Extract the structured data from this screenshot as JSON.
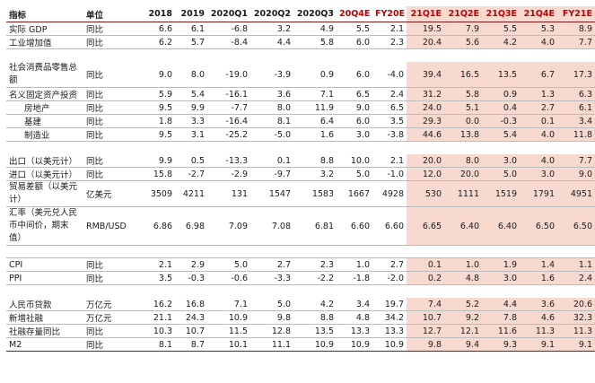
{
  "headers": [
    "指标",
    "单位",
    "2018",
    "2019",
    "2020Q1",
    "2020Q2",
    "2020Q3",
    "20Q4E",
    "FY20E",
    "21Q1E",
    "21Q2E",
    "21Q3E",
    "21Q4E",
    "FY21E"
  ],
  "rows": [
    {
      "kind": "row",
      "label": "实际 GDP",
      "unit": "同比",
      "values": [
        "6.6",
        "6.1",
        "-6.8",
        "3.2",
        "4.9",
        "5.5",
        "2.1",
        "19.5",
        "7.9",
        "5.5",
        "5.3",
        "8.9"
      ]
    },
    {
      "kind": "row",
      "label": "工业增加值",
      "unit": "同比",
      "values": [
        "6.2",
        "5.7",
        "-8.4",
        "4.4",
        "5.8",
        "6.0",
        "2.3",
        "20.4",
        "5.6",
        "4.2",
        "4.0",
        "7.7"
      ]
    },
    {
      "kind": "gap"
    },
    {
      "kind": "row",
      "tall": true,
      "label": "社会消费品零售总额",
      "unit": "同比",
      "values": [
        "9.0",
        "8.0",
        "-19.0",
        "-3.9",
        "0.9",
        "6.0",
        "-4.0",
        "39.4",
        "16.5",
        "13.5",
        "6.7",
        "17.3"
      ]
    },
    {
      "kind": "row",
      "label": "名义固定资产投资",
      "unit": "同比",
      "values": [
        "5.9",
        "5.4",
        "-16.1",
        "3.6",
        "7.1",
        "6.5",
        "2.4",
        "31.2",
        "5.8",
        "0.9",
        "1.3",
        "6.3"
      ]
    },
    {
      "kind": "row",
      "indent": true,
      "label": "房地产",
      "unit": "同比",
      "values": [
        "9.5",
        "9.9",
        "-7.7",
        "8.0",
        "11.9",
        "9.0",
        "6.5",
        "24.0",
        "5.1",
        "0.4",
        "2.7",
        "6.1"
      ]
    },
    {
      "kind": "row",
      "indent": true,
      "label": "基建",
      "unit": "同比",
      "values": [
        "1.8",
        "3.3",
        "-16.4",
        "8.1",
        "6.4",
        "6.0",
        "3.5",
        "29.3",
        "0.0",
        "-0.3",
        "0.1",
        "3.4"
      ]
    },
    {
      "kind": "row",
      "indent": true,
      "label": "制造业",
      "unit": "同比",
      "values": [
        "9.5",
        "3.1",
        "-25.2",
        "-5.0",
        "1.6",
        "3.0",
        "-3.8",
        "44.6",
        "13.8",
        "5.4",
        "4.0",
        "11.8"
      ]
    },
    {
      "kind": "gap"
    },
    {
      "kind": "row",
      "label": "出口（以美元计）",
      "unit": "同比",
      "values": [
        "9.9",
        "0.5",
        "-13.3",
        "0.1",
        "8.8",
        "10.0",
        "2.1",
        "20.0",
        "8.0",
        "3.0",
        "4.0",
        "7.7"
      ]
    },
    {
      "kind": "row",
      "label": "进口（以美元计）",
      "unit": "同比",
      "values": [
        "15.8",
        "-2.7",
        "-2.9",
        "-9.7",
        "3.2",
        "5.0",
        "-1.0",
        "12.0",
        "20.0",
        "5.0",
        "3.0",
        "9.0"
      ]
    },
    {
      "kind": "row",
      "tall": true,
      "label": "贸易差额（以美元计）",
      "unit": "亿美元",
      "values": [
        "3509",
        "4211",
        "131",
        "1547",
        "1583",
        "1667",
        "4928",
        "530",
        "1111",
        "1519",
        "1791",
        "4951"
      ]
    },
    {
      "kind": "row",
      "tall": true,
      "label": "汇率（美元兑人民币中间价，期末值）",
      "unit": "RMB/USD",
      "values": [
        "6.86",
        "6.98",
        "7.09",
        "7.08",
        "6.81",
        "6.60",
        "6.60",
        "6.65",
        "6.40",
        "6.40",
        "6.50",
        "6.50"
      ]
    },
    {
      "kind": "gapb"
    },
    {
      "kind": "row",
      "label": "CPI",
      "unit": "同比",
      "values": [
        "2.1",
        "2.9",
        "5.0",
        "2.7",
        "2.3",
        "1.0",
        "2.7",
        "0.1",
        "1.0",
        "1.9",
        "1.4",
        "1.1"
      ]
    },
    {
      "kind": "row",
      "label": "PPI",
      "unit": "同比",
      "values": [
        "3.5",
        "-0.3",
        "-0.6",
        "-3.3",
        "-2.2",
        "-1.8",
        "-2.0",
        "0.2",
        "4.8",
        "3.0",
        "1.6",
        "2.4"
      ]
    },
    {
      "kind": "gap"
    },
    {
      "kind": "row",
      "label": "人民币贷款",
      "unit": "万亿元",
      "values": [
        "16.2",
        "16.8",
        "7.1",
        "5.0",
        "4.2",
        "3.4",
        "19.7",
        "7.4",
        "5.2",
        "4.4",
        "3.6",
        "20.6"
      ]
    },
    {
      "kind": "row",
      "label": "新增社融",
      "unit": "万亿元",
      "values": [
        "21.1",
        "24.3",
        "10.9",
        "9.8",
        "8.8",
        "4.8",
        "34.2",
        "10.7",
        "9.2",
        "7.8",
        "4.6",
        "32.3"
      ]
    },
    {
      "kind": "row",
      "label": "社融存量同比",
      "unit": "同比",
      "values": [
        "10.3",
        "10.7",
        "11.5",
        "12.8",
        "13.5",
        "13.3",
        "13.3",
        "12.7",
        "12.1",
        "11.6",
        "11.3",
        "11.3"
      ]
    },
    {
      "kind": "row",
      "label": "M2",
      "unit": "同比",
      "values": [
        "8.1",
        "8.7",
        "10.1",
        "11.1",
        "10.9",
        "10.9",
        "10.9",
        "9.8",
        "9.4",
        "9.3",
        "9.1",
        "9.1"
      ]
    }
  ]
}
